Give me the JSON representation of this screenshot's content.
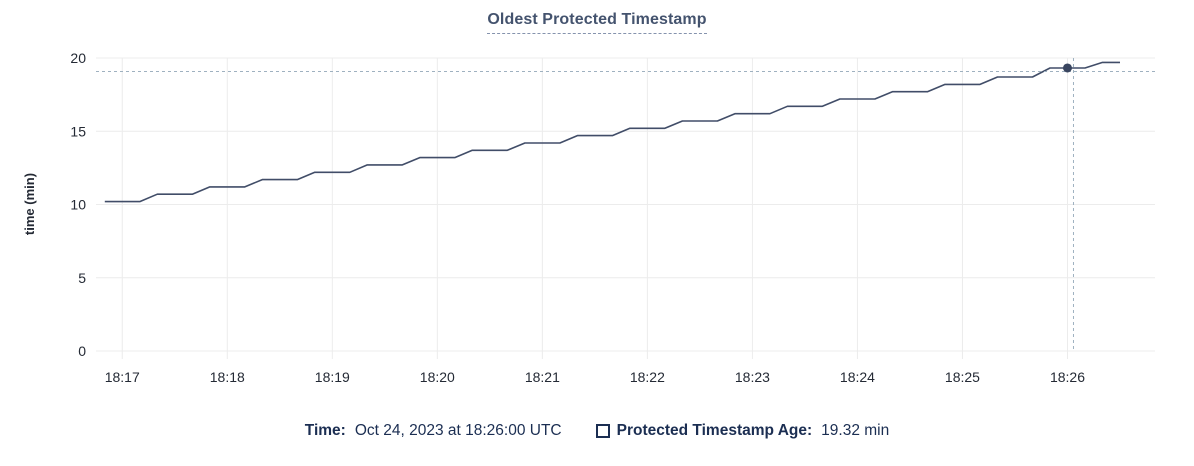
{
  "title": "Oldest Protected Timestamp",
  "colors": {
    "title": "#44536e",
    "title_underline": "#8593ad",
    "axis_text": "#242a35",
    "gridline": "#ececec",
    "series": "#414d68",
    "dot": "#39455f",
    "crosshair": "#9fb1c0",
    "footer_text": "#1b2e52"
  },
  "chart_data": {
    "type": "line",
    "title": "Oldest Protected Timestamp",
    "xlabel": "",
    "ylabel": "time (min)",
    "ylim": [
      0,
      20
    ],
    "yticks": [
      0,
      5,
      10,
      15,
      20
    ],
    "xticks": [
      "18:17",
      "18:18",
      "18:19",
      "18:20",
      "18:21",
      "18:22",
      "18:23",
      "18:24",
      "18:25",
      "18:26"
    ],
    "x_domain": [
      "18:16:45",
      "18:26:50"
    ],
    "grid": true,
    "legend_position": "bottom",
    "series": [
      {
        "name": "Protected Timestamp Age",
        "unit": "min",
        "points": [
          [
            "18:16:50",
            10.2
          ],
          [
            "18:17:10",
            10.2
          ],
          [
            "18:17:20",
            10.7
          ],
          [
            "18:17:40",
            10.7
          ],
          [
            "18:17:50",
            11.2
          ],
          [
            "18:18:10",
            11.2
          ],
          [
            "18:18:20",
            11.7
          ],
          [
            "18:18:40",
            11.7
          ],
          [
            "18:18:50",
            12.2
          ],
          [
            "18:19:10",
            12.2
          ],
          [
            "18:19:20",
            12.7
          ],
          [
            "18:19:40",
            12.7
          ],
          [
            "18:19:50",
            13.2
          ],
          [
            "18:20:10",
            13.2
          ],
          [
            "18:20:20",
            13.7
          ],
          [
            "18:20:40",
            13.7
          ],
          [
            "18:20:50",
            14.2
          ],
          [
            "18:21:10",
            14.2
          ],
          [
            "18:21:20",
            14.7
          ],
          [
            "18:21:40",
            14.7
          ],
          [
            "18:21:50",
            15.2
          ],
          [
            "18:22:10",
            15.2
          ],
          [
            "18:22:20",
            15.7
          ],
          [
            "18:22:40",
            15.7
          ],
          [
            "18:22:50",
            16.2
          ],
          [
            "18:23:10",
            16.2
          ],
          [
            "18:23:20",
            16.7
          ],
          [
            "18:23:40",
            16.7
          ],
          [
            "18:23:50",
            17.2
          ],
          [
            "18:24:10",
            17.2
          ],
          [
            "18:24:20",
            17.7
          ],
          [
            "18:24:40",
            17.7
          ],
          [
            "18:24:50",
            18.2
          ],
          [
            "18:25:10",
            18.2
          ],
          [
            "18:25:20",
            18.7
          ],
          [
            "18:25:40",
            18.7
          ],
          [
            "18:25:50",
            19.32
          ],
          [
            "18:26:10",
            19.32
          ],
          [
            "18:26:20",
            19.7
          ],
          [
            "18:26:30",
            19.7
          ]
        ]
      }
    ],
    "highlight_point": {
      "time": "18:26:00",
      "value": 19.32
    }
  },
  "footer": {
    "time_label": "Time:",
    "time_value": "Oct 24, 2023 at 18:26:00 UTC",
    "series_label": "Protected Timestamp Age:",
    "series_value": "19.32 min"
  }
}
